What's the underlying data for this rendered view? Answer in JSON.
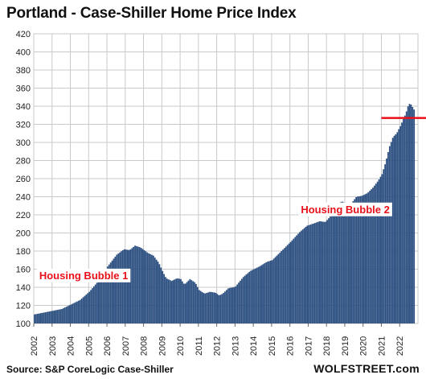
{
  "chart_data": {
    "type": "bar",
    "title": "Portland - Case-Shiller Home Price Index",
    "source": "Source: S&P CoreLogic Case-Shiller",
    "brand": "WOLFSTREET.com",
    "xlabel": "",
    "ylabel": "",
    "ylim": [
      100,
      420
    ],
    "yticks": [
      100,
      120,
      140,
      160,
      180,
      200,
      220,
      240,
      260,
      280,
      300,
      320,
      340,
      360,
      380,
      400,
      420
    ],
    "xticks": [
      "2002",
      "2003",
      "2004",
      "2005",
      "2006",
      "2007",
      "2008",
      "2009",
      "2010",
      "2011",
      "2012",
      "2013",
      "2014",
      "2015",
      "2016",
      "2017",
      "2018",
      "2019",
      "2020",
      "2021",
      "2022"
    ],
    "grid": true,
    "x_start_year": 2002,
    "bar_color": "#2a4e7f",
    "reference_line": {
      "value": 327,
      "x_from": 2021.0,
      "x_to": 2023.0,
      "color": "#e8101a"
    },
    "annotations": [
      {
        "text": "Housing Bubble 1",
        "x": 2002.3,
        "y": 149
      },
      {
        "text": "Housing Bubble 2",
        "x": 2016.6,
        "y": 222
      }
    ],
    "anchors": [
      [
        2002.0,
        110
      ],
      [
        2002.5,
        112
      ],
      [
        2003.0,
        114
      ],
      [
        2003.5,
        116
      ],
      [
        2004.0,
        121
      ],
      [
        2004.5,
        126
      ],
      [
        2005.0,
        135
      ],
      [
        2005.5,
        147
      ],
      [
        2006.0,
        163
      ],
      [
        2006.5,
        176
      ],
      [
        2006.9,
        182
      ],
      [
        2007.2,
        181
      ],
      [
        2007.5,
        186
      ],
      [
        2007.8,
        184
      ],
      [
        2008.2,
        178
      ],
      [
        2008.5,
        175
      ],
      [
        2008.8,
        167
      ],
      [
        2009.0,
        158
      ],
      [
        2009.2,
        150
      ],
      [
        2009.5,
        147
      ],
      [
        2009.8,
        150
      ],
      [
        2010.0,
        149
      ],
      [
        2010.2,
        143
      ],
      [
        2010.5,
        149
      ],
      [
        2010.8,
        145
      ],
      [
        2011.0,
        137
      ],
      [
        2011.3,
        133
      ],
      [
        2011.6,
        135
      ],
      [
        2011.9,
        134
      ],
      [
        2012.1,
        131
      ],
      [
        2012.3,
        133
      ],
      [
        2012.6,
        139
      ],
      [
        2012.9,
        140
      ],
      [
        2013.0,
        141
      ],
      [
        2013.4,
        151
      ],
      [
        2013.8,
        158
      ],
      [
        2014.0,
        160
      ],
      [
        2014.3,
        163
      ],
      [
        2014.7,
        168
      ],
      [
        2015.0,
        170
      ],
      [
        2015.5,
        180
      ],
      [
        2016.0,
        190
      ],
      [
        2016.5,
        201
      ],
      [
        2016.9,
        208
      ],
      [
        2017.2,
        210
      ],
      [
        2017.6,
        213
      ],
      [
        2017.9,
        212
      ],
      [
        2018.2,
        219
      ],
      [
        2018.5,
        230
      ],
      [
        2018.8,
        235
      ],
      [
        2019.0,
        233
      ],
      [
        2019.3,
        232
      ],
      [
        2019.6,
        240
      ],
      [
        2019.9,
        241
      ],
      [
        2020.2,
        244
      ],
      [
        2020.5,
        250
      ],
      [
        2020.8,
        258
      ],
      [
        2021.0,
        265
      ],
      [
        2021.2,
        278
      ],
      [
        2021.4,
        295
      ],
      [
        2021.6,
        306
      ],
      [
        2021.8,
        310
      ],
      [
        2022.0,
        318
      ],
      [
        2022.3,
        332
      ],
      [
        2022.45,
        342
      ],
      [
        2022.55,
        343
      ],
      [
        2022.7,
        338
      ],
      [
        2022.85,
        333
      ],
      [
        2023.0,
        327
      ]
    ]
  }
}
